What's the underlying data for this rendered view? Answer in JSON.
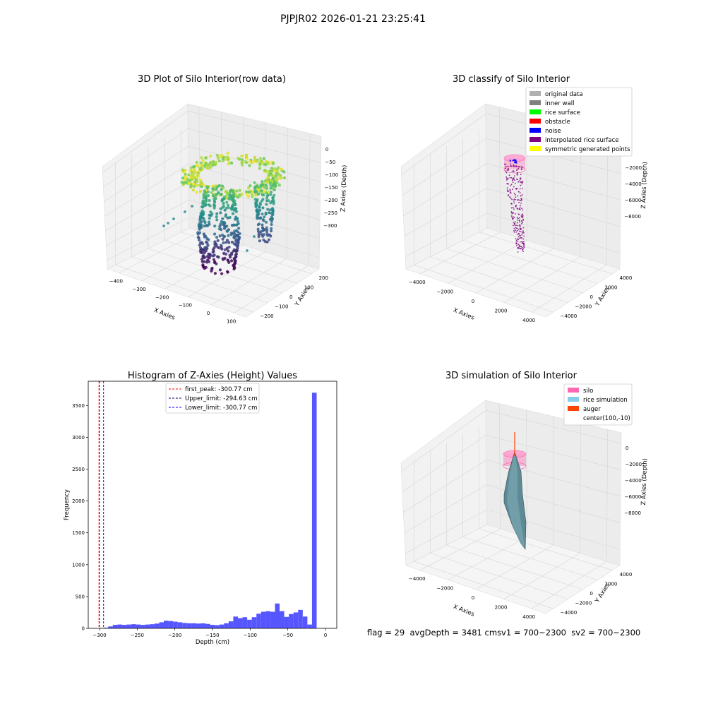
{
  "figure_title": "PJPJR02 2026-01-21 23:25:41",
  "status": {
    "flag": "flag = 29",
    "avg_depth": "avgDepth = 3481 cm",
    "sv1": "sv1 = 700~2300",
    "sv2": "sv2 = 700~2300"
  },
  "chart_data": [
    {
      "type": "scatter",
      "title": "3D Plot of Silo Interior(row data)",
      "xlabel": "X Axies",
      "ylabel": "Y Axies",
      "zlabel": "Z Axies (Depth)",
      "xticks": [
        -400,
        -300,
        -200,
        -100,
        0,
        100
      ],
      "yticks": [
        -200,
        -100,
        0,
        100,
        200
      ],
      "zticks": [
        0,
        -50,
        -100,
        -150,
        -200,
        -250,
        -300
      ],
      "xlim": [
        -450,
        150
      ],
      "ylim": [
        -230,
        250
      ],
      "zlim": [
        -330,
        10
      ],
      "colormap": [
        "#440154",
        "#3b528b",
        "#21908d",
        "#5dc963",
        "#fde725"
      ],
      "grid": true
    },
    {
      "type": "scatter",
      "title": "3D classify of Silo Interior",
      "xlabel": "X Axies",
      "ylabel": "Y Axies",
      "zlabel": "Z Axies (Depth)",
      "xticks": [
        -4000,
        -2000,
        0,
        2000,
        4000
      ],
      "yticks": [
        -4000,
        -2000,
        0,
        2000,
        4000
      ],
      "zticks": [
        0,
        -2000,
        -4000,
        -6000,
        -8000
      ],
      "legend_position": "top-right",
      "legend": [
        {
          "label": "original data",
          "color": "#b0b0b0"
        },
        {
          "label": "inner wall",
          "color": "#808080"
        },
        {
          "label": "rice surface",
          "color": "#00ff00"
        },
        {
          "label": "obstacle",
          "color": "#ff0000"
        },
        {
          "label": "noise",
          "color": "#0000ff"
        },
        {
          "label": "interpolated rice surface",
          "color": "#800080"
        },
        {
          "label": "symmetric generated points",
          "color": "#ffff00"
        }
      ],
      "grid": true
    },
    {
      "type": "bar",
      "title": "Histogram of Z-Axies (Height) Values",
      "xlabel": "Depth (cm)",
      "ylabel": "Frequency",
      "xlim": [
        -315,
        15
      ],
      "ylim": [
        0,
        3880
      ],
      "xticks": [
        -300,
        -250,
        -200,
        -150,
        -100,
        -50,
        0
      ],
      "yticks": [
        0,
        500,
        1000,
        1500,
        2000,
        2500,
        3000,
        3500
      ],
      "bin_width": 6.15,
      "bin_start": -300.77,
      "counts": [
        5,
        10,
        30,
        55,
        60,
        55,
        60,
        65,
        60,
        55,
        60,
        65,
        75,
        95,
        120,
        115,
        105,
        95,
        85,
        80,
        80,
        75,
        80,
        70,
        55,
        50,
        60,
        80,
        110,
        185,
        160,
        175,
        135,
        175,
        230,
        260,
        270,
        260,
        390,
        270,
        180,
        225,
        250,
        290,
        185,
        60,
        3700
      ],
      "bar_color": "#4d4dff",
      "vlines": [
        {
          "x": -300.77,
          "label": "first_peak: -300.77 cm",
          "color": "#ff0000"
        },
        {
          "x": -294.63,
          "label": "Upper_limit: -294.63 cm",
          "color": "#000080"
        },
        {
          "x": -300.77,
          "label": "Lower_limit: -300.77 cm",
          "color": "#0000ff"
        }
      ],
      "legend_position": "top-center",
      "grid": false
    },
    {
      "type": "area",
      "title": "3D simulation of Silo Interior",
      "xlabel": "X Axies",
      "ylabel": "Y Axies",
      "zlabel": "Z Axies (Depth)",
      "xticks": [
        -4000,
        -2000,
        0,
        2000,
        4000
      ],
      "yticks": [
        -4000,
        -2000,
        0,
        2000,
        4000
      ],
      "zticks": [
        0,
        -2000,
        -4000,
        -6000,
        -8000
      ],
      "legend_position": "top-right",
      "legend": [
        {
          "label": "silo",
          "color": "#ff69b4"
        },
        {
          "label": "rice simulation",
          "color": "#87ceeb"
        },
        {
          "label": "auger",
          "color": "#ff4500"
        },
        {
          "label": "center(100,-10)",
          "color": ""
        }
      ],
      "grid": true
    }
  ]
}
